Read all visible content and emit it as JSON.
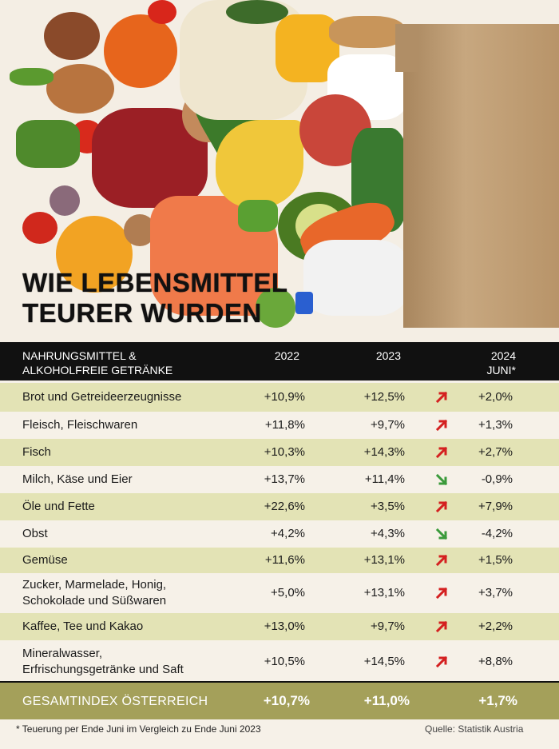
{
  "title_lines": [
    "WIE LEBENSMITTEL",
    "TEURER WURDEN"
  ],
  "header": {
    "category_line1": "NAHRUNGSMITTEL &",
    "category_line2": "ALKOHOLFREIE GETRÄNKE",
    "col_2022": "2022",
    "col_2023": "2023",
    "col_2024_line1": "2024",
    "col_2024_line2": "JUNI*"
  },
  "rows": [
    {
      "name1": "Brot und Getreideerzeugnisse",
      "name2": "",
      "v2022": "+10,9%",
      "v2023": "+12,5%",
      "trend": "up",
      "v2024": "+2,0%"
    },
    {
      "name1": "Fleisch, Fleischwaren",
      "name2": "",
      "v2022": "+11,8%",
      "v2023": "+9,7%",
      "trend": "up",
      "v2024": "+1,3%"
    },
    {
      "name1": "Fisch",
      "name2": "",
      "v2022": "+10,3%",
      "v2023": "+14,3%",
      "trend": "up",
      "v2024": "+2,7%"
    },
    {
      "name1": "Milch, Käse und Eier",
      "name2": "",
      "v2022": "+13,7%",
      "v2023": "+11,4%",
      "trend": "down",
      "v2024": "-0,9%"
    },
    {
      "name1": "Öle und Fette",
      "name2": "",
      "v2022": "+22,6%",
      "v2023": "+3,5%",
      "trend": "up",
      "v2024": "+7,9%"
    },
    {
      "name1": "Obst",
      "name2": "",
      "v2022": "+4,2%",
      "v2023": "+4,3%",
      "trend": "down",
      "v2024": "-4,2%"
    },
    {
      "name1": "Gemüse",
      "name2": "",
      "v2022": "+11,6%",
      "v2023": "+13,1%",
      "trend": "up",
      "v2024": "+1,5%"
    },
    {
      "name1": "Zucker, Marmelade, Honig,",
      "name2": "Schokolade und Süßwaren",
      "v2022": "+5,0%",
      "v2023": "+13,1%",
      "trend": "up",
      "v2024": "+3,7%"
    },
    {
      "name1": "Kaffee, Tee und Kakao",
      "name2": "",
      "v2022": "+13,0%",
      "v2023": "+9,7%",
      "trend": "up",
      "v2024": "+2,2%"
    },
    {
      "name1": "Mineralwasser,",
      "name2": "Erfrischungsgetränke und Saft",
      "v2022": "+10,5%",
      "v2023": "+14,5%",
      "trend": "up",
      "v2024": "+8,8%"
    }
  ],
  "total": {
    "label": "GESAMTINDEX ÖSTERREICH",
    "v2022": "+10,7%",
    "v2023": "+11,0%",
    "v2024": "+1,7%"
  },
  "footnote": "*  Teuerung per Ende Juni im Vergleich zu Ende Juni 2023",
  "source": "Quelle: Statistik Austria",
  "colors": {
    "up": "#d42020",
    "down": "#3a9a3a",
    "row_alt": "#e3e3b5",
    "total_bg": "#a4a05a",
    "header_bg": "#111111"
  },
  "icons": {
    "up": "arrow-up-right-icon",
    "down": "arrow-down-right-icon"
  }
}
